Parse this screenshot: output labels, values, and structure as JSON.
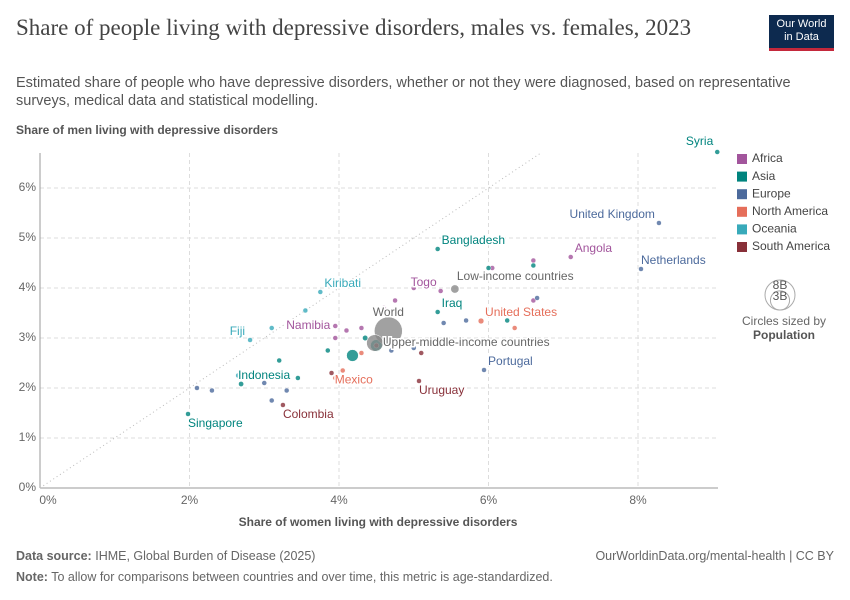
{
  "chart_data": {
    "type": "scatter",
    "title": "Share of people living with depressive disorders, males vs. females, 2023",
    "subtitle": "Estimated share of people who have depressive disorders, whether or not they were diagnosed, based on representative surveys, medical data and statistical modelling.",
    "xlabel": "Share of women living with depressive disorders",
    "ylabel": "Share of men living with depressive disorders",
    "logo": [
      "Our World",
      "in Data"
    ],
    "xlim": [
      0,
      9.07
    ],
    "ylim": [
      0,
      6.7
    ],
    "xticks": [
      {
        "value": 0,
        "label": "0%"
      },
      {
        "value": 2,
        "label": "2%"
      },
      {
        "value": 4,
        "label": "4%"
      },
      {
        "value": 6,
        "label": "6%"
      },
      {
        "value": 8,
        "label": "8%"
      }
    ],
    "yticks": [
      {
        "value": 0,
        "label": "0%"
      },
      {
        "value": 1,
        "label": "1%"
      },
      {
        "value": 2,
        "label": "2%"
      },
      {
        "value": 3,
        "label": "3%"
      },
      {
        "value": 4,
        "label": "4%"
      },
      {
        "value": 5,
        "label": "5%"
      },
      {
        "value": 6,
        "label": "6%"
      }
    ],
    "grid": true,
    "series": [
      {
        "name": "Africa",
        "color": "#a2559c",
        "labels": [
          "Angola",
          "Togo",
          "Namibia",
          null,
          null,
          null,
          null,
          null,
          null,
          null,
          null,
          null
        ],
        "x": [
          7.1,
          5.36,
          3.95,
          6.6,
          6.05,
          4.75,
          4.3,
          4.1,
          3.95,
          4.6,
          6.6,
          5.0
        ],
        "y": [
          4.62,
          3.94,
          3.24,
          4.55,
          4.4,
          3.75,
          3.2,
          3.15,
          3.0,
          3.6,
          3.75,
          4.0
        ],
        "size": [
          36000000,
          9000000,
          3000000,
          30000000,
          20000000,
          50000000,
          20000000,
          15000000,
          10000000,
          30000000,
          15000000,
          10000000
        ]
      },
      {
        "name": "Asia",
        "color": "#00847e",
        "labels": [
          "Syria",
          "Bangladesh",
          "Iraq",
          "Indonesia",
          "Singapore",
          null,
          null,
          null,
          null,
          null,
          null,
          null,
          null,
          null
        ],
        "x": [
          9.06,
          5.32,
          5.32,
          2.69,
          1.98,
          4.18,
          4.5,
          4.35,
          6.0,
          6.25,
          3.85,
          3.2,
          3.45,
          6.6
        ],
        "y": [
          6.72,
          4.78,
          3.52,
          2.08,
          1.48,
          2.65,
          2.85,
          3.0,
          4.4,
          3.35,
          2.75,
          2.55,
          2.2,
          4.45
        ],
        "size": [
          23000000,
          170000000,
          45000000,
          280000000,
          6000000,
          1430000000,
          1410000000,
          300000000,
          10000000,
          30000000,
          20000000,
          15000000,
          20000000,
          5000000
        ]
      },
      {
        "name": "Europe",
        "color": "#4c6a9c",
        "labels": [
          "United Kingdom",
          "Netherlands",
          "Portugal",
          null,
          null,
          null,
          null,
          null,
          null,
          null,
          null,
          null,
          null
        ],
        "x": [
          8.28,
          8.04,
          5.94,
          5.4,
          5.0,
          4.7,
          2.1,
          2.3,
          3.0,
          3.3,
          6.65,
          5.7,
          3.1
        ],
        "y": [
          5.3,
          4.38,
          2.36,
          3.3,
          2.8,
          2.75,
          2.0,
          1.95,
          2.1,
          1.95,
          3.8,
          3.35,
          1.75
        ],
        "size": [
          68000000,
          18000000,
          10000000,
          10000000,
          10000000,
          40000000,
          5000000,
          5000000,
          5000000,
          4000000,
          5000000,
          20000000,
          5000000
        ]
      },
      {
        "name": "North America",
        "color": "#e56e5a",
        "labels": [
          "United States",
          "Mexico",
          null,
          null,
          null
        ],
        "x": [
          5.9,
          4.05,
          6.35,
          4.3,
          3.95
        ],
        "y": [
          3.34,
          2.35,
          3.2,
          2.7,
          2.2
        ],
        "size": [
          340000000,
          128000000,
          5000000,
          10000000,
          3000000
        ]
      },
      {
        "name": "Oceania",
        "color": "#38aaba",
        "labels": [
          "Kiribati",
          "Fiji",
          null,
          null,
          null
        ],
        "x": [
          3.75,
          2.81,
          3.55,
          3.1,
          2.65
        ],
        "y": [
          3.92,
          2.96,
          3.55,
          3.2,
          2.25
        ],
        "size": [
          100000,
          900000,
          500000,
          27000000,
          300000
        ]
      },
      {
        "name": "South America",
        "color": "#883039",
        "labels": [
          "Uruguay",
          "Colombia",
          null,
          null,
          null
        ],
        "x": [
          5.07,
          3.25,
          5.1,
          4.5,
          3.9
        ],
        "y": [
          2.14,
          1.66,
          2.7,
          2.85,
          2.3
        ],
        "size": [
          3400000,
          52000000,
          215000000,
          45000000,
          30000000
        ]
      }
    ],
    "aggregates": {
      "color": "#8a8a8a",
      "labels": [
        "Low-income countries",
        "World",
        "Upper-middle-income countries"
      ],
      "x": [
        5.55,
        4.66,
        4.48
      ],
      "y": [
        3.98,
        3.14,
        2.9
      ],
      "size": [
        700000000,
        8000000000,
        2800000000
      ]
    },
    "size_legend": {
      "title": "Circles sized by",
      "measure": "Population",
      "values": [
        {
          "value": 8000000000,
          "label": "8B"
        },
        {
          "value": 3000000000,
          "label": "3B"
        }
      ]
    },
    "source_label": "Data source:",
    "source": "IHME, Global Burden of Disease (2025)",
    "url": "OurWorldinData.org/mental-health | CC BY",
    "note_label": "Note:",
    "note": "To allow for comparisons between countries and over time, this metric is age-standardized."
  }
}
